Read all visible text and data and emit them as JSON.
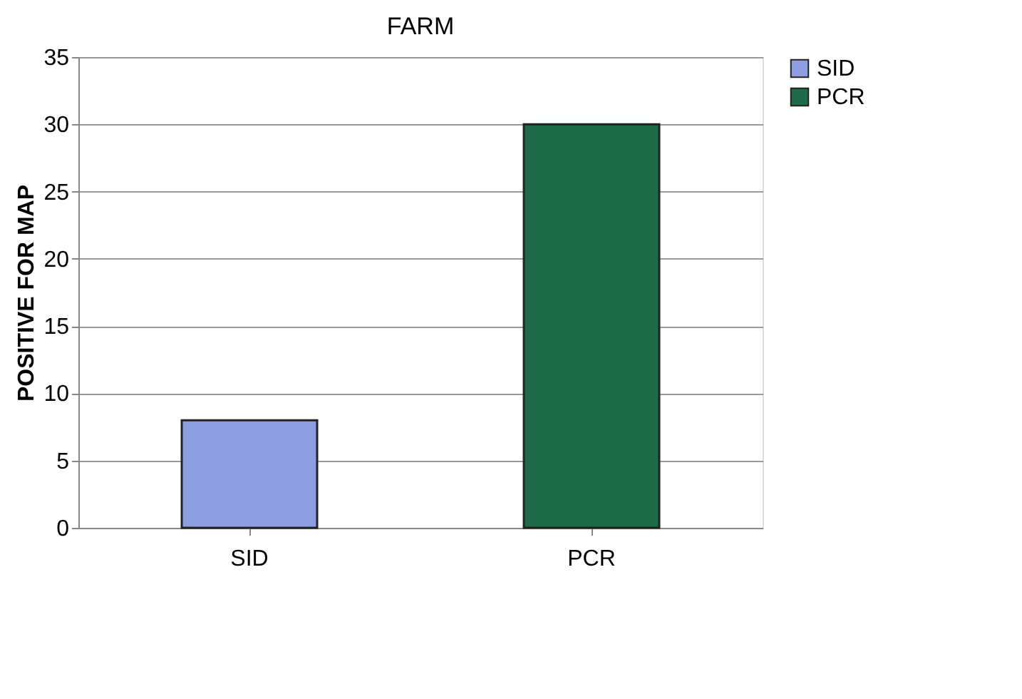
{
  "chart_data": {
    "type": "bar",
    "title": "FARM",
    "ylabel": "POSITIVE FOR MAP",
    "categories": [
      "SID",
      "PCR"
    ],
    "series": [
      {
        "name": "SID",
        "color": "#8c9ee0",
        "values": [
          8,
          null
        ]
      },
      {
        "name": "PCR",
        "color": "#1f6b47",
        "values": [
          null,
          30
        ]
      }
    ],
    "ylim": [
      0,
      35
    ],
    "yticks": [
      0,
      5,
      10,
      15,
      20,
      25,
      30,
      35
    ],
    "grid": "y",
    "legend": "right"
  }
}
